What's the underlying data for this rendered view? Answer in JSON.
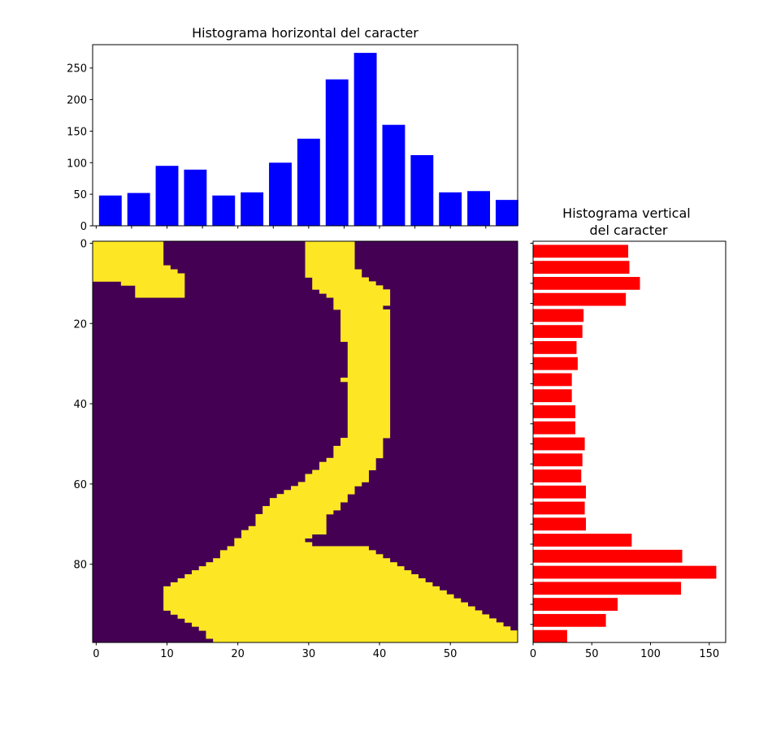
{
  "chart_data": [
    {
      "type": "bar",
      "title": "Histograma horizontal del caracter",
      "color": "#0000ff",
      "x": [
        2,
        6,
        10,
        14,
        18,
        22,
        26,
        30,
        34,
        38,
        42,
        46,
        50,
        54,
        58
      ],
      "values": [
        48,
        52,
        95,
        89,
        48,
        53,
        100,
        138,
        232,
        274,
        160,
        112,
        53,
        55,
        41
      ],
      "xlim": [
        -0.5,
        59.5
      ],
      "ylim": [
        0,
        287
      ],
      "ytick_labels": [
        "0",
        "50",
        "100",
        "150",
        "200",
        "250"
      ]
    },
    {
      "type": "heatmap",
      "colormap": "viridis",
      "low_color": "#440154",
      "high_color": "#fde725",
      "columns": 60,
      "rows": 100,
      "xtick_labels": [
        "0",
        "10",
        "20",
        "30",
        "40",
        "50"
      ],
      "ytick_labels": [
        "0",
        "20",
        "40",
        "60",
        "80"
      ],
      "row_spans": [
        [
          0,
          0,
          10,
          30,
          37
        ],
        [
          1,
          0,
          10,
          30,
          37
        ],
        [
          2,
          0,
          10,
          30,
          37
        ],
        [
          3,
          0,
          10,
          30,
          37
        ],
        [
          4,
          0,
          10,
          30,
          37
        ],
        [
          5,
          0,
          10,
          30,
          37
        ],
        [
          6,
          0,
          11,
          30,
          37
        ],
        [
          7,
          0,
          12,
          30,
          38
        ],
        [
          8,
          0,
          13,
          30,
          38
        ],
        [
          9,
          0,
          13,
          31,
          39
        ],
        [
          10,
          4,
          13,
          31,
          40
        ],
        [
          11,
          6,
          13,
          31,
          41
        ],
        [
          12,
          6,
          13,
          32,
          42
        ],
        [
          13,
          6,
          13,
          33,
          42
        ],
        [
          14,
          null,
          null,
          34,
          42
        ],
        [
          15,
          null,
          null,
          34,
          42
        ],
        [
          16,
          null,
          null,
          34,
          41
        ],
        [
          17,
          null,
          null,
          35,
          42
        ],
        [
          18,
          null,
          null,
          35,
          42
        ],
        [
          19,
          null,
          null,
          35,
          42
        ],
        [
          20,
          null,
          null,
          35,
          42
        ],
        [
          21,
          null,
          null,
          35,
          42
        ],
        [
          22,
          null,
          null,
          35,
          42
        ],
        [
          23,
          null,
          null,
          35,
          42
        ],
        [
          24,
          null,
          null,
          35,
          42
        ],
        [
          25,
          null,
          null,
          36,
          42
        ],
        [
          26,
          null,
          null,
          36,
          42
        ],
        [
          27,
          null,
          null,
          36,
          42
        ],
        [
          28,
          null,
          null,
          36,
          42
        ],
        [
          29,
          null,
          null,
          36,
          42
        ],
        [
          30,
          null,
          null,
          36,
          42
        ],
        [
          31,
          null,
          null,
          36,
          42
        ],
        [
          32,
          null,
          null,
          36,
          42
        ],
        [
          33,
          null,
          null,
          36,
          42
        ],
        [
          34,
          null,
          null,
          35,
          42
        ],
        [
          35,
          null,
          null,
          36,
          42
        ],
        [
          36,
          null,
          null,
          36,
          42
        ],
        [
          37,
          null,
          null,
          36,
          42
        ],
        [
          38,
          null,
          null,
          36,
          42
        ],
        [
          39,
          null,
          null,
          36,
          42
        ],
        [
          40,
          null,
          null,
          36,
          42
        ],
        [
          41,
          null,
          null,
          36,
          42
        ],
        [
          42,
          null,
          null,
          36,
          42
        ],
        [
          43,
          null,
          null,
          36,
          42
        ],
        [
          44,
          null,
          null,
          36,
          42
        ],
        [
          45,
          null,
          null,
          36,
          42
        ],
        [
          46,
          null,
          null,
          36,
          42
        ],
        [
          47,
          null,
          null,
          36,
          42
        ],
        [
          48,
          null,
          null,
          36,
          42
        ],
        [
          49,
          null,
          null,
          35,
          41
        ],
        [
          50,
          null,
          null,
          35,
          41
        ],
        [
          51,
          null,
          null,
          34,
          41
        ],
        [
          52,
          null,
          null,
          34,
          41
        ],
        [
          53,
          null,
          null,
          34,
          41
        ],
        [
          54,
          null,
          null,
          33,
          40
        ],
        [
          55,
          null,
          null,
          32,
          40
        ],
        [
          56,
          null,
          null,
          32,
          40
        ],
        [
          57,
          null,
          null,
          31,
          39
        ],
        [
          58,
          null,
          null,
          30,
          39
        ],
        [
          59,
          null,
          null,
          30,
          39
        ],
        [
          60,
          null,
          null,
          29,
          38
        ],
        [
          61,
          null,
          null,
          28,
          37
        ],
        [
          62,
          null,
          null,
          27,
          37
        ],
        [
          63,
          null,
          null,
          26,
          36
        ],
        [
          64,
          null,
          null,
          25,
          36
        ],
        [
          65,
          null,
          null,
          25,
          35
        ],
        [
          66,
          null,
          null,
          24,
          35
        ],
        [
          67,
          null,
          null,
          24,
          34
        ],
        [
          68,
          null,
          null,
          23,
          33
        ],
        [
          69,
          null,
          null,
          23,
          33
        ],
        [
          70,
          null,
          null,
          23,
          33
        ],
        [
          71,
          null,
          null,
          22,
          33
        ],
        [
          72,
          null,
          null,
          21,
          33
        ],
        [
          73,
          null,
          null,
          21,
          31
        ],
        [
          74,
          null,
          null,
          20,
          30
        ],
        [
          75,
          null,
          null,
          20,
          31
        ],
        [
          76,
          null,
          null,
          19,
          39
        ],
        [
          77,
          null,
          null,
          18,
          40
        ],
        [
          78,
          null,
          null,
          18,
          41
        ],
        [
          79,
          null,
          null,
          17,
          42
        ],
        [
          80,
          null,
          null,
          16,
          43
        ],
        [
          81,
          null,
          null,
          15,
          44
        ],
        [
          82,
          null,
          null,
          14,
          45
        ],
        [
          83,
          null,
          null,
          13,
          46
        ],
        [
          84,
          null,
          null,
          12,
          47
        ],
        [
          85,
          null,
          null,
          11,
          48
        ],
        [
          86,
          null,
          null,
          10,
          49
        ],
        [
          87,
          null,
          null,
          10,
          50
        ],
        [
          88,
          null,
          null,
          10,
          51
        ],
        [
          89,
          null,
          null,
          10,
          52
        ],
        [
          90,
          null,
          null,
          10,
          53
        ],
        [
          91,
          null,
          null,
          10,
          54
        ],
        [
          92,
          null,
          null,
          11,
          55
        ],
        [
          93,
          null,
          null,
          12,
          56
        ],
        [
          94,
          null,
          null,
          13,
          57
        ],
        [
          95,
          null,
          null,
          14,
          58
        ],
        [
          96,
          null,
          null,
          15,
          59
        ],
        [
          97,
          null,
          null,
          16,
          60
        ],
        [
          98,
          null,
          null,
          16,
          60
        ],
        [
          99,
          null,
          null,
          17,
          60
        ]
      ]
    },
    {
      "type": "bar",
      "orientation": "horizontal",
      "title": "Histograma vertical\ndel caracter",
      "title_lines": [
        "Histograma vertical",
        "del caracter"
      ],
      "color": "#ff0000",
      "y": [
        2,
        6,
        10,
        14,
        18,
        22,
        26,
        30,
        34,
        38,
        42,
        46,
        50,
        54,
        58,
        62,
        66,
        70,
        74,
        78,
        82,
        86,
        90,
        94,
        98
      ],
      "values": [
        81,
        82,
        91,
        79,
        43,
        42,
        37,
        38,
        33,
        33,
        36,
        36,
        44,
        42,
        41,
        45,
        44,
        45,
        84,
        127,
        156,
        126,
        72,
        62,
        29
      ],
      "xlim": [
        0,
        164
      ],
      "ylim": [
        99.5,
        -0.5
      ],
      "xtick_labels": [
        "0",
        "50",
        "100",
        "150"
      ]
    }
  ]
}
